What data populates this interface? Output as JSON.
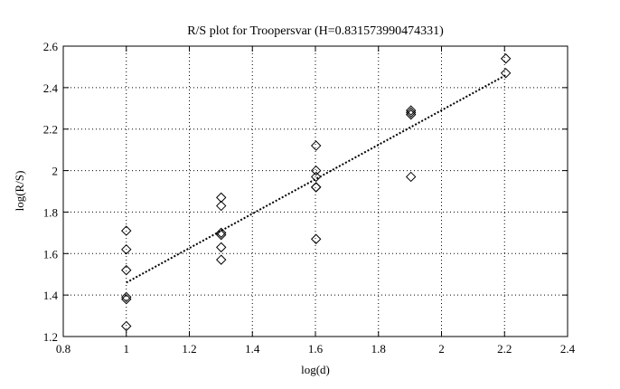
{
  "chart_data": {
    "type": "scatter",
    "title": "R/S plot for Troopersvar (H=0.831573990474331)",
    "xlabel": "log(d)",
    "ylabel": "log(R/S)",
    "xlim": [
      0.8,
      2.4
    ],
    "ylim": [
      1.2,
      2.6
    ],
    "xticks": [
      0.8,
      1,
      1.2,
      1.4,
      1.6,
      1.8,
      2,
      2.2,
      2.4
    ],
    "xtick_labels": [
      "0.8",
      "1",
      "1.2",
      "1.4",
      "1.6",
      "1.8",
      "2",
      "2.2",
      "2.4"
    ],
    "yticks": [
      1.2,
      1.4,
      1.6,
      1.8,
      2,
      2.2,
      2.4,
      2.6
    ],
    "ytick_labels": [
      "1.2",
      "1.4",
      "1.6",
      "1.8",
      "2",
      "2.2",
      "2.4",
      "2.6"
    ],
    "grid": true,
    "marker": "diamond",
    "points": [
      {
        "x": 1.0,
        "y": 1.71
      },
      {
        "x": 1.0,
        "y": 1.62
      },
      {
        "x": 1.0,
        "y": 1.52
      },
      {
        "x": 1.0,
        "y": 1.39
      },
      {
        "x": 1.0,
        "y": 1.38
      },
      {
        "x": 1.0,
        "y": 1.25
      },
      {
        "x": 1.301,
        "y": 1.87
      },
      {
        "x": 1.301,
        "y": 1.83
      },
      {
        "x": 1.301,
        "y": 1.7
      },
      {
        "x": 1.301,
        "y": 1.69
      },
      {
        "x": 1.301,
        "y": 1.63
      },
      {
        "x": 1.301,
        "y": 1.57
      },
      {
        "x": 1.602,
        "y": 2.12
      },
      {
        "x": 1.602,
        "y": 2.0
      },
      {
        "x": 1.602,
        "y": 1.97
      },
      {
        "x": 1.602,
        "y": 1.92
      },
      {
        "x": 1.602,
        "y": 1.92
      },
      {
        "x": 1.602,
        "y": 1.67
      },
      {
        "x": 1.903,
        "y": 2.29
      },
      {
        "x": 1.903,
        "y": 2.28
      },
      {
        "x": 1.903,
        "y": 2.27
      },
      {
        "x": 1.903,
        "y": 1.97
      },
      {
        "x": 2.204,
        "y": 2.54
      },
      {
        "x": 2.204,
        "y": 2.47
      }
    ],
    "fit_line": {
      "x": [
        1.0,
        2.204
      ],
      "y": [
        1.46,
        2.46
      ],
      "style": "dotted"
    }
  }
}
